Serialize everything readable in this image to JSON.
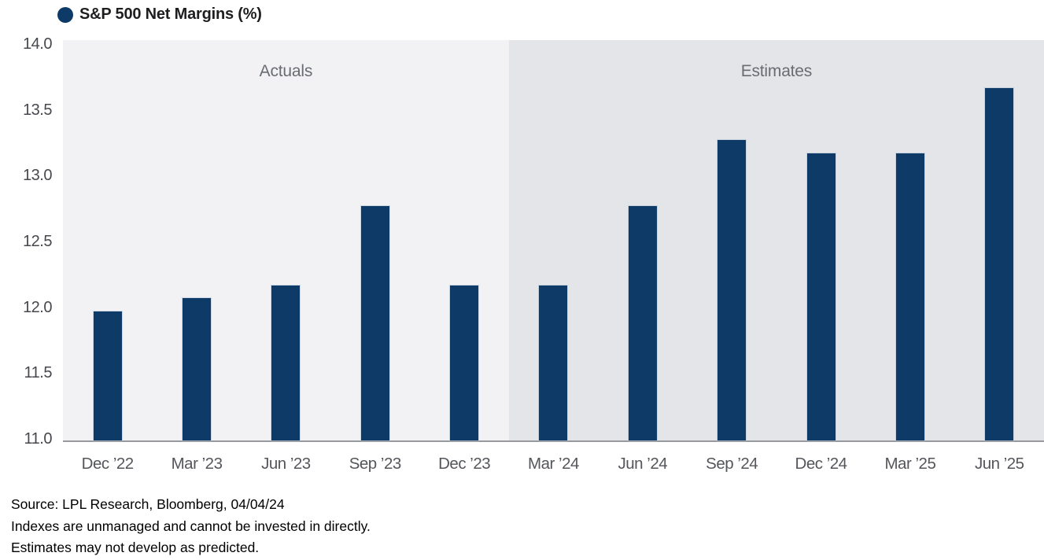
{
  "legend": {
    "marker": "filled-circle-icon",
    "marker_color": "#0d3a66",
    "label": "S&P 500 Net Margins (%)"
  },
  "chart_data": {
    "type": "bar",
    "title": "S&P 500 Net Margins (%)",
    "categories": [
      "Dec ’22",
      "Mar ’23",
      "Jun ’23",
      "Sep ’23",
      "Dec ’23",
      "Mar ’24",
      "Jun ’24",
      "Sep ’24",
      "Dec ’24",
      "Mar ’25",
      "Jun ’25"
    ],
    "values": [
      11.98,
      12.08,
      12.18,
      12.78,
      12.18,
      12.18,
      12.78,
      13.28,
      13.18,
      13.18,
      13.68
    ],
    "xlabel": "",
    "ylabel": "",
    "ylim": [
      11.0,
      14.0
    ],
    "ytick_step": 0.5,
    "yticks": [
      "14.0",
      "13.5",
      "13.0",
      "12.5",
      "12.0",
      "11.5",
      "11.0"
    ],
    "grid": false,
    "legend_position": "top-left",
    "bar_color": "#0d3a66",
    "axis_line_color": "#98999d",
    "regions": [
      {
        "label": "Actuals",
        "from_index": 0,
        "to_index": 4,
        "background": "#f2f2f4"
      },
      {
        "label": "Estimates",
        "from_index": 5,
        "to_index": 10,
        "background": "#e3e5e9"
      }
    ]
  },
  "footer": {
    "lines": [
      "Source: LPL Research, Bloomberg, 04/04/24",
      "Indexes are unmanaged and cannot be invested in directly.",
      "Estimates may not develop as predicted."
    ]
  }
}
